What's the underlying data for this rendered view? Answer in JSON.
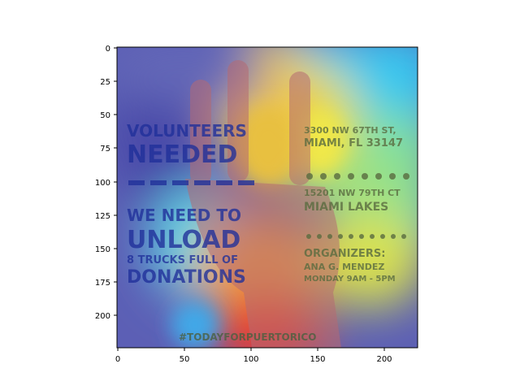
{
  "figure": {
    "x_ticks": [
      "0",
      "50",
      "100",
      "150",
      "200"
    ],
    "y_ticks": [
      "0",
      "25",
      "50",
      "75",
      "100",
      "125",
      "150",
      "175",
      "200"
    ]
  },
  "poster": {
    "left_line1": "VOLUNTEERS",
    "left_line2": "NEEDED",
    "left_line3": "WE NEED TO",
    "left_line4": "UNLOAD",
    "left_line5": "8 TRUCKS FULL OF",
    "left_line6": "DONATIONS",
    "addr1_line1": "3300 NW 67TH ST,",
    "addr1_line2": "MIAMI, FL 33147",
    "addr2_line1": "15201 NW 79TH CT",
    "addr2_line2": "MIAMI LAKES",
    "org_title": "ORGANIZERS:",
    "org_name": "ANA G. MENDEZ",
    "org_time": "MONDAY 9AM - 5PM",
    "hashtag": "#TODAYFORPUERTORICO"
  },
  "colors": {
    "poster_text": "#1f2f9a",
    "poster_text_right": "#6b7a3a",
    "hand": "#b06a70"
  }
}
